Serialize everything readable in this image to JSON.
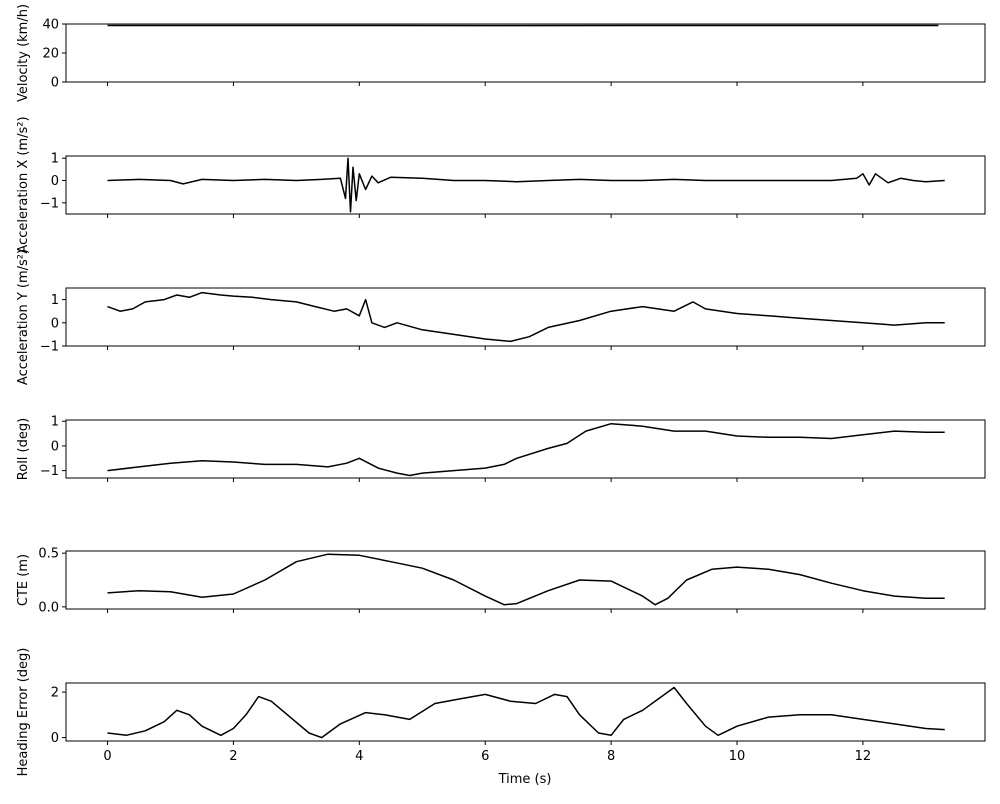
{
  "chart_data": [
    {
      "type": "line",
      "ylabel": "Velocity (km/h)",
      "xlim": [
        -0.66,
        13.94
      ],
      "ylim": [
        0,
        40
      ],
      "yticks": [
        0,
        20,
        40
      ],
      "xticks": [
        0,
        2,
        4,
        6,
        8,
        10,
        12
      ],
      "series": [
        {
          "points": [
            [
              0.0,
              39.0
            ],
            [
              3.0,
              39.0
            ],
            [
              6.0,
              38.9
            ],
            [
              9.0,
              39.0
            ],
            [
              12.0,
              39.0
            ],
            [
              13.2,
              39.0
            ]
          ]
        }
      ]
    },
    {
      "type": "line",
      "ylabel": "Acceleration X (m/s²)",
      "xlim": [
        -0.66,
        13.94
      ],
      "ylim": [
        -1.5,
        1.1
      ],
      "yticks": [
        -1,
        0,
        1
      ],
      "xticks": [
        0,
        2,
        4,
        6,
        8,
        10,
        12
      ],
      "series": [
        {
          "points": [
            [
              0.0,
              0.0
            ],
            [
              0.5,
              0.05
            ],
            [
              1.0,
              0.0
            ],
            [
              1.2,
              -0.15
            ],
            [
              1.5,
              0.05
            ],
            [
              2.0,
              0.0
            ],
            [
              2.5,
              0.05
            ],
            [
              3.0,
              0.0
            ],
            [
              3.4,
              0.05
            ],
            [
              3.7,
              0.1
            ],
            [
              3.78,
              -0.8
            ],
            [
              3.82,
              1.0
            ],
            [
              3.86,
              -1.4
            ],
            [
              3.9,
              0.6
            ],
            [
              3.95,
              -0.9
            ],
            [
              4.0,
              0.3
            ],
            [
              4.1,
              -0.4
            ],
            [
              4.2,
              0.2
            ],
            [
              4.3,
              -0.1
            ],
            [
              4.5,
              0.15
            ],
            [
              5.0,
              0.1
            ],
            [
              5.5,
              0.0
            ],
            [
              6.0,
              0.0
            ],
            [
              6.5,
              -0.05
            ],
            [
              7.0,
              0.0
            ],
            [
              7.5,
              0.05
            ],
            [
              8.0,
              0.0
            ],
            [
              8.5,
              0.0
            ],
            [
              9.0,
              0.05
            ],
            [
              9.5,
              0.0
            ],
            [
              10.0,
              0.0
            ],
            [
              10.5,
              0.0
            ],
            [
              11.0,
              0.0
            ],
            [
              11.5,
              0.0
            ],
            [
              11.9,
              0.1
            ],
            [
              12.0,
              0.3
            ],
            [
              12.1,
              -0.2
            ],
            [
              12.2,
              0.3
            ],
            [
              12.4,
              -0.1
            ],
            [
              12.6,
              0.1
            ],
            [
              12.8,
              0.0
            ],
            [
              13.0,
              -0.05
            ],
            [
              13.3,
              0.0
            ]
          ]
        }
      ]
    },
    {
      "type": "line",
      "ylabel": "Acceleration Y (m/s²)",
      "xlim": [
        -0.66,
        13.94
      ],
      "ylim": [
        -1.0,
        1.5
      ],
      "yticks": [
        -1,
        0,
        1
      ],
      "xticks": [
        0,
        2,
        4,
        6,
        8,
        10,
        12
      ],
      "series": [
        {
          "points": [
            [
              0.0,
              0.7
            ],
            [
              0.2,
              0.5
            ],
            [
              0.4,
              0.6
            ],
            [
              0.6,
              0.9
            ],
            [
              0.9,
              1.0
            ],
            [
              1.1,
              1.2
            ],
            [
              1.3,
              1.1
            ],
            [
              1.5,
              1.3
            ],
            [
              1.8,
              1.2
            ],
            [
              2.0,
              1.15
            ],
            [
              2.3,
              1.1
            ],
            [
              2.6,
              1.0
            ],
            [
              3.0,
              0.9
            ],
            [
              3.3,
              0.7
            ],
            [
              3.6,
              0.5
            ],
            [
              3.8,
              0.6
            ],
            [
              4.0,
              0.3
            ],
            [
              4.1,
              1.0
            ],
            [
              4.2,
              0.0
            ],
            [
              4.4,
              -0.2
            ],
            [
              4.6,
              0.0
            ],
            [
              5.0,
              -0.3
            ],
            [
              5.5,
              -0.5
            ],
            [
              6.0,
              -0.7
            ],
            [
              6.4,
              -0.8
            ],
            [
              6.7,
              -0.6
            ],
            [
              7.0,
              -0.2
            ],
            [
              7.5,
              0.1
            ],
            [
              8.0,
              0.5
            ],
            [
              8.5,
              0.7
            ],
            [
              9.0,
              0.5
            ],
            [
              9.3,
              0.9
            ],
            [
              9.5,
              0.6
            ],
            [
              10.0,
              0.4
            ],
            [
              10.5,
              0.3
            ],
            [
              11.0,
              0.2
            ],
            [
              11.5,
              0.1
            ],
            [
              12.0,
              0.0
            ],
            [
              12.5,
              -0.1
            ],
            [
              13.0,
              0.0
            ],
            [
              13.3,
              0.0
            ]
          ]
        }
      ]
    },
    {
      "type": "line",
      "ylabel": "Roll (deg)",
      "xlim": [
        -0.66,
        13.94
      ],
      "ylim": [
        -1.3,
        1.05
      ],
      "yticks": [
        -1,
        0,
        1
      ],
      "xticks": [
        0,
        2,
        4,
        6,
        8,
        10,
        12
      ],
      "series": [
        {
          "points": [
            [
              0.0,
              -1.0
            ],
            [
              0.5,
              -0.85
            ],
            [
              1.0,
              -0.7
            ],
            [
              1.5,
              -0.6
            ],
            [
              2.0,
              -0.65
            ],
            [
              2.5,
              -0.75
            ],
            [
              3.0,
              -0.75
            ],
            [
              3.5,
              -0.85
            ],
            [
              3.8,
              -0.7
            ],
            [
              4.0,
              -0.5
            ],
            [
              4.3,
              -0.9
            ],
            [
              4.6,
              -1.1
            ],
            [
              4.8,
              -1.2
            ],
            [
              5.0,
              -1.1
            ],
            [
              5.5,
              -1.0
            ],
            [
              6.0,
              -0.9
            ],
            [
              6.3,
              -0.75
            ],
            [
              6.5,
              -0.5
            ],
            [
              7.0,
              -0.1
            ],
            [
              7.3,
              0.1
            ],
            [
              7.6,
              0.6
            ],
            [
              8.0,
              0.9
            ],
            [
              8.5,
              0.8
            ],
            [
              9.0,
              0.6
            ],
            [
              9.5,
              0.6
            ],
            [
              10.0,
              0.4
            ],
            [
              10.5,
              0.35
            ],
            [
              11.0,
              0.35
            ],
            [
              11.5,
              0.3
            ],
            [
              12.0,
              0.45
            ],
            [
              12.5,
              0.6
            ],
            [
              13.0,
              0.55
            ],
            [
              13.3,
              0.55
            ]
          ]
        }
      ]
    },
    {
      "type": "line",
      "ylabel": "CTE (m)",
      "xlim": [
        -0.66,
        13.94
      ],
      "ylim": [
        -0.02,
        0.52
      ],
      "yticks": [
        0.0,
        0.5
      ],
      "ytick_labels": [
        "0.0",
        "0.5"
      ],
      "xticks": [
        0,
        2,
        4,
        6,
        8,
        10,
        12
      ],
      "series": [
        {
          "points": [
            [
              0.0,
              0.13
            ],
            [
              0.5,
              0.15
            ],
            [
              1.0,
              0.14
            ],
            [
              1.5,
              0.09
            ],
            [
              2.0,
              0.12
            ],
            [
              2.5,
              0.25
            ],
            [
              3.0,
              0.42
            ],
            [
              3.5,
              0.49
            ],
            [
              4.0,
              0.48
            ],
            [
              4.5,
              0.42
            ],
            [
              5.0,
              0.36
            ],
            [
              5.5,
              0.25
            ],
            [
              6.0,
              0.1
            ],
            [
              6.3,
              0.02
            ],
            [
              6.5,
              0.03
            ],
            [
              7.0,
              0.15
            ],
            [
              7.5,
              0.25
            ],
            [
              8.0,
              0.24
            ],
            [
              8.5,
              0.1
            ],
            [
              8.7,
              0.02
            ],
            [
              8.9,
              0.08
            ],
            [
              9.2,
              0.25
            ],
            [
              9.6,
              0.35
            ],
            [
              10.0,
              0.37
            ],
            [
              10.5,
              0.35
            ],
            [
              11.0,
              0.3
            ],
            [
              11.5,
              0.22
            ],
            [
              12.0,
              0.15
            ],
            [
              12.5,
              0.1
            ],
            [
              13.0,
              0.08
            ],
            [
              13.3,
              0.08
            ]
          ]
        }
      ]
    },
    {
      "type": "line",
      "ylabel": "Heading Error (deg)",
      "xlim": [
        -0.66,
        13.94
      ],
      "ylim": [
        -0.15,
        2.4
      ],
      "yticks": [
        0,
        2
      ],
      "xticks": [
        0,
        2,
        4,
        6,
        8,
        10,
        12
      ],
      "series": [
        {
          "points": [
            [
              0.0,
              0.2
            ],
            [
              0.3,
              0.1
            ],
            [
              0.6,
              0.3
            ],
            [
              0.9,
              0.7
            ],
            [
              1.1,
              1.2
            ],
            [
              1.3,
              1.0
            ],
            [
              1.5,
              0.5
            ],
            [
              1.8,
              0.1
            ],
            [
              2.0,
              0.4
            ],
            [
              2.2,
              1.0
            ],
            [
              2.4,
              1.8
            ],
            [
              2.6,
              1.6
            ],
            [
              2.9,
              0.9
            ],
            [
              3.2,
              0.2
            ],
            [
              3.4,
              0.0
            ],
            [
              3.7,
              0.6
            ],
            [
              4.1,
              1.1
            ],
            [
              4.4,
              1.0
            ],
            [
              4.8,
              0.8
            ],
            [
              5.2,
              1.5
            ],
            [
              5.6,
              1.7
            ],
            [
              6.0,
              1.9
            ],
            [
              6.4,
              1.6
            ],
            [
              6.8,
              1.5
            ],
            [
              7.1,
              1.9
            ],
            [
              7.3,
              1.8
            ],
            [
              7.5,
              1.0
            ],
            [
              7.8,
              0.2
            ],
            [
              8.0,
              0.1
            ],
            [
              8.2,
              0.8
            ],
            [
              8.5,
              1.2
            ],
            [
              8.8,
              1.8
            ],
            [
              9.0,
              2.2
            ],
            [
              9.2,
              1.5
            ],
            [
              9.5,
              0.5
            ],
            [
              9.7,
              0.1
            ],
            [
              10.0,
              0.5
            ],
            [
              10.5,
              0.9
            ],
            [
              11.0,
              1.0
            ],
            [
              11.5,
              1.0
            ],
            [
              12.0,
              0.8
            ],
            [
              12.5,
              0.6
            ],
            [
              13.0,
              0.4
            ],
            [
              13.3,
              0.35
            ]
          ]
        }
      ]
    }
  ],
  "xlabel": "Time (s)"
}
